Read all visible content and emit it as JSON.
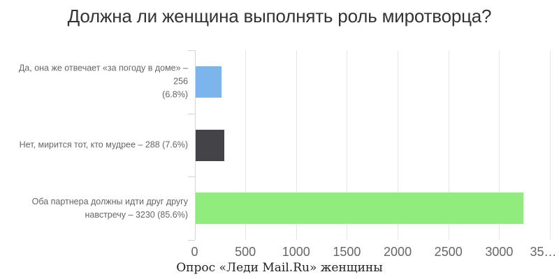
{
  "chart_data": {
    "type": "bar",
    "orientation": "horizontal",
    "title": "Должна ли женщина выполнять роль миротворца?",
    "caption": "Опрос «Леди Mail.Ru» женщины",
    "xlabel": "",
    "ylabel": "",
    "xlim": [
      0,
      3500
    ],
    "x_ticks": [
      0,
      500,
      1000,
      1500,
      2000,
      2500,
      3000,
      3500
    ],
    "x_tick_labels": [
      "0",
      "500",
      "1000",
      "1500",
      "2000",
      "2500",
      "3000",
      "35…"
    ],
    "grid": true,
    "legend": false,
    "series": [
      {
        "category": "Да, она же отвечает «за погоду в доме»",
        "value": 256,
        "percent": "6.8%",
        "color": "#7cb5ec",
        "label_lines": [
          "Да, она же отвечает «за погоду в доме» – 256",
          "(6.8%)"
        ]
      },
      {
        "category": "Нет, мирится тот, кто мудрее",
        "value": 288,
        "percent": "7.6%",
        "color": "#434348",
        "label_lines": [
          "Нет, мирится тот, кто мудрее – 288 (7.6%)"
        ]
      },
      {
        "category": "Оба партнера должны идти друг другу навстречу",
        "value": 3230,
        "percent": "85.6%",
        "color": "#90ed7d",
        "label_lines": [
          "Оба партнера должны идти друг другу",
          "навстречу – 3230 (85.6%)"
        ]
      }
    ],
    "colors": {
      "grid": "#e6e6e6",
      "axis": "#ccd6eb",
      "labels": "#666666",
      "title": "#333333",
      "caption": "#222222",
      "background": "#ffffff"
    }
  }
}
